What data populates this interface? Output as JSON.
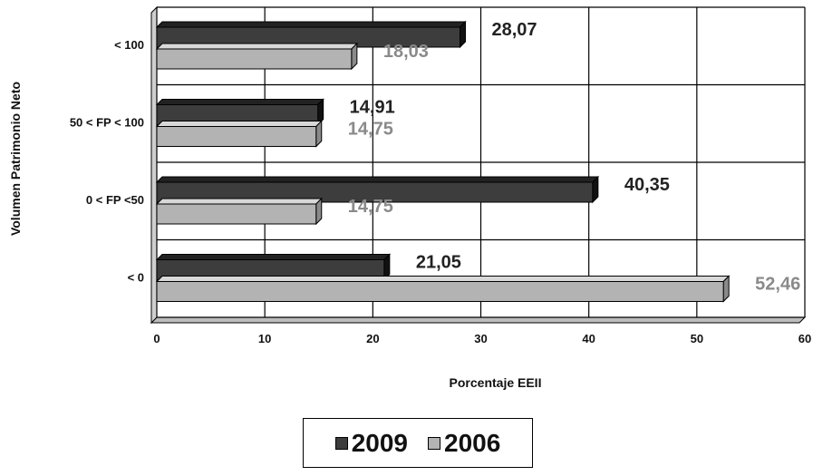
{
  "chart_data": {
    "type": "bar",
    "orientation": "horizontal",
    "style": "3d",
    "categories": [
      "< 100",
      "50 < FP < 100",
      "0 < FP <50",
      "< 0"
    ],
    "series": [
      {
        "name": "2009",
        "values": [
          28.07,
          14.91,
          40.35,
          21.05
        ],
        "value_labels": [
          "28,07",
          "14,91",
          "40,35",
          "21,05"
        ],
        "color": "#3d3d3d",
        "label_color": "#222222"
      },
      {
        "name": "2006",
        "values": [
          18.03,
          14.75,
          14.75,
          52.46
        ],
        "value_labels": [
          "18,03",
          "14,75",
          "14,75",
          "52,46"
        ],
        "color": "#b3b3b3",
        "label_color": "#8a8a8a"
      }
    ],
    "xlabel": "Porcentaje EEII",
    "ylabel": "Volumen Patrimonio Neto",
    "xlim": [
      0,
      60
    ],
    "xticks": [
      0,
      10,
      20,
      30,
      40,
      50,
      60
    ],
    "grid": true,
    "legend_position": "bottom"
  }
}
